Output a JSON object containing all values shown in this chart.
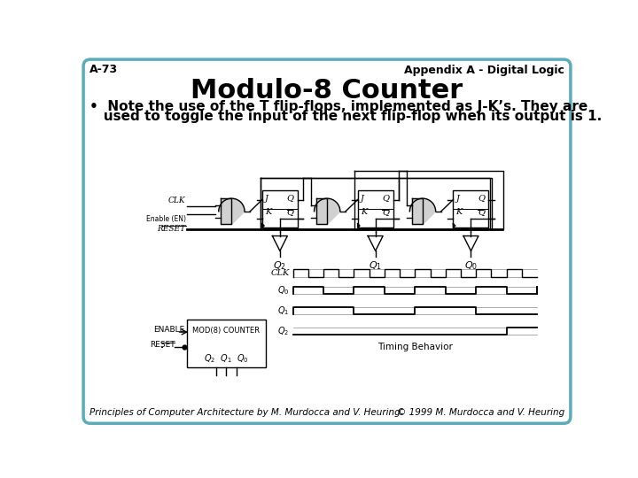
{
  "bg_color": "#ffffff",
  "border_color": "#5aacb8",
  "border_lw": 2.5,
  "top_left_text": "A-73",
  "top_right_text": "Appendix A - Digital Logic",
  "header_fontsize": 9,
  "header_fontfamily": "sans-serif",
  "title": "Modulo-8 Counter",
  "title_fontsize": 22,
  "title_fontweight": "bold",
  "title_fontfamily": "sans-serif",
  "bullet_line1": "•  Note the use of the T flip-flops, implemented as J-K’s. They are",
  "bullet_line2": "   used to toggle the input of the next flip-flop when its output is 1.",
  "bullet_fontsize": 11,
  "bullet_fontweight": "bold",
  "footer_left": "Principles of Computer Architecture by M. Murdocca and V. Heuring",
  "footer_right": "© 1999 M. Murdocca and V. Heuring",
  "footer_fontsize": 7.5,
  "footer_fontstyle": "italic",
  "circ_lw": 1.0,
  "reset_lw": 2.0
}
